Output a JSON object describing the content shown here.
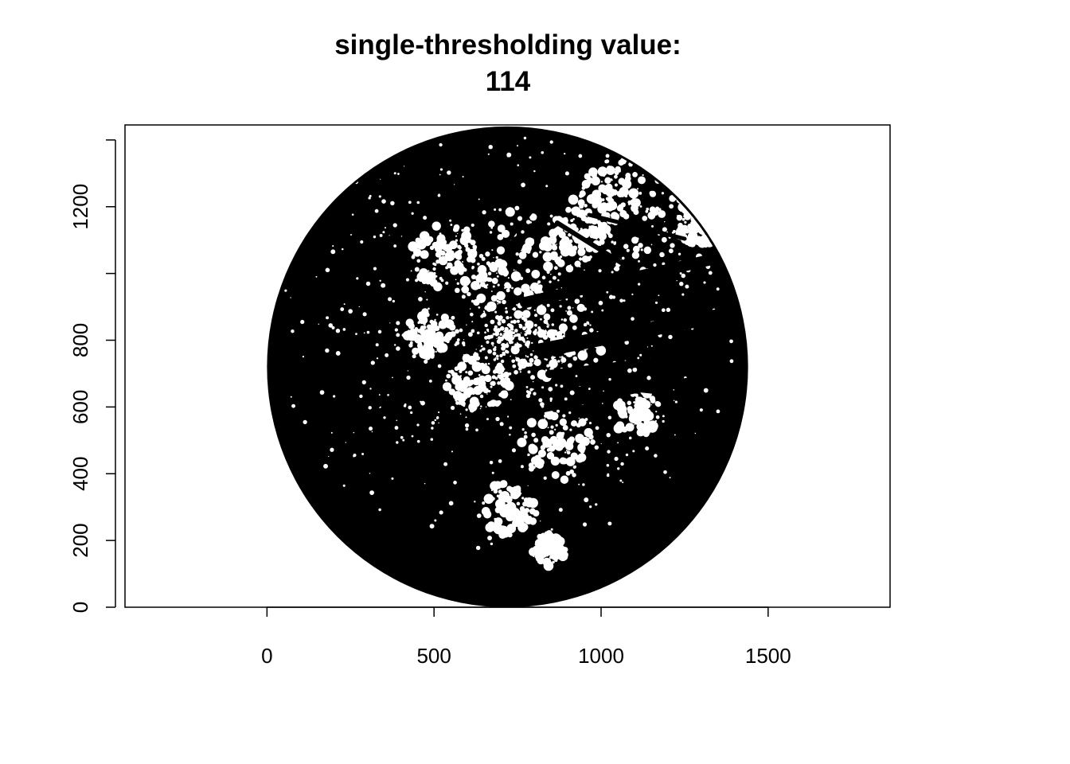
{
  "title_line1": "single-thresholding value:",
  "title_line2": "114",
  "chart_data": {
    "type": "image",
    "title": "single-thresholding value:\n114",
    "threshold_value": 114,
    "xlabel": "",
    "ylabel": "",
    "xlim": [
      -425,
      1865
    ],
    "ylim": [
      0,
      1445
    ],
    "x_ticks": [
      0,
      500,
      1000,
      1500
    ],
    "x_tick_labels": [
      "0",
      "500",
      "1000",
      "1500"
    ],
    "y_ticks": [
      0,
      200,
      400,
      600,
      800,
      1000,
      1200,
      1400
    ],
    "y_tick_labels": [
      "0",
      "200",
      "400",
      "600",
      "800",
      "",
      "1200",
      ""
    ],
    "image_extent": {
      "x": [
        0,
        1440
      ],
      "y": [
        0,
        1440
      ]
    },
    "circle": {
      "center": [
        720,
        720
      ],
      "radius": 720
    },
    "pixel_values": [
      "black",
      "white"
    ],
    "grid": false,
    "legend": "none",
    "colors": {
      "foreground": "#000000",
      "background": "#ffffff"
    }
  }
}
